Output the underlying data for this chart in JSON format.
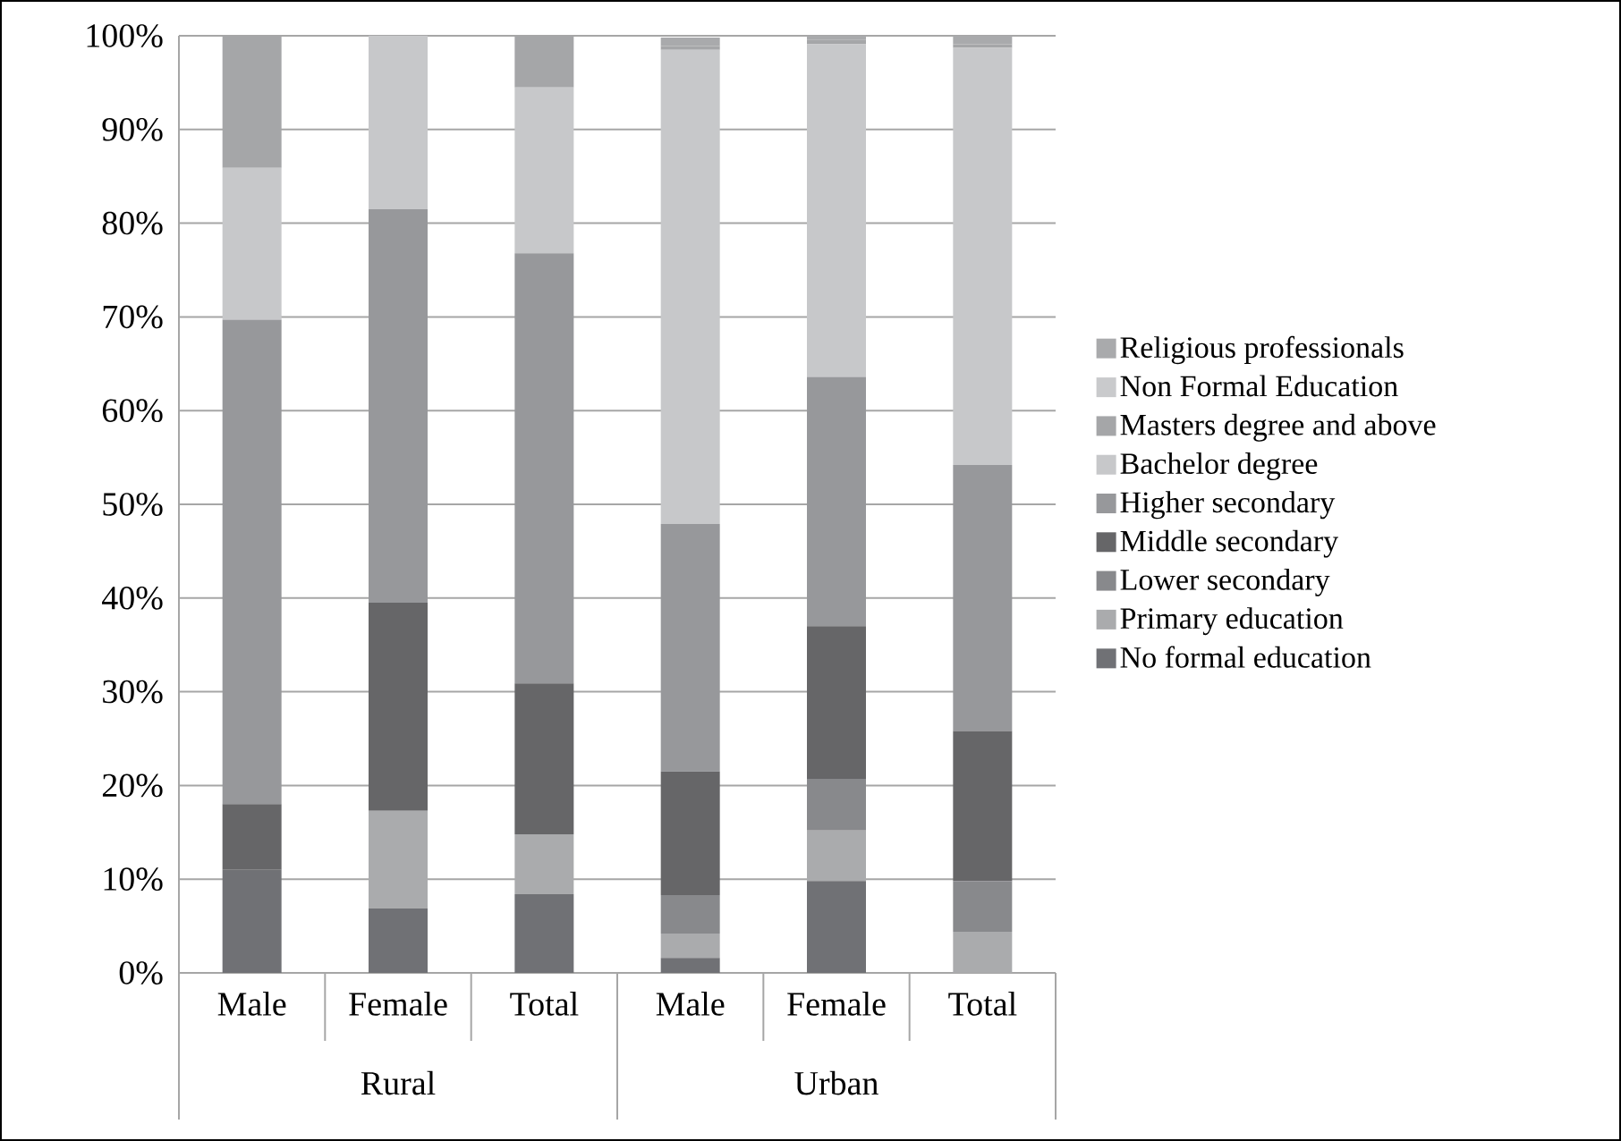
{
  "chart_data": {
    "type": "bar",
    "stacked": true,
    "categories": [
      "Male",
      "Female",
      "Total",
      "Male",
      "Female",
      "Total"
    ],
    "annotations": [
      "Rural",
      "Urban"
    ],
    "series": [
      {
        "name": "No formal education",
        "color": "#707175",
        "values": [
          11,
          6.9,
          8.4,
          1.6,
          9.8,
          0
        ]
      },
      {
        "name": "Primary education",
        "color": "#aaabad",
        "values": [
          0,
          10.4,
          6.4,
          2.6,
          5.4,
          4.4
        ]
      },
      {
        "name": "Lower  secondary",
        "color": "#88898c",
        "values": [
          0,
          0,
          0,
          4.1,
          5.5,
          5.4
        ]
      },
      {
        "name": "Middle secondary",
        "color": "#666668",
        "values": [
          7,
          22.2,
          16.1,
          13.2,
          16.3,
          16
        ]
      },
      {
        "name": "Higher secondary",
        "color": "#97989b",
        "values": [
          51.7,
          42,
          45.9,
          26.4,
          26.6,
          28.4
        ]
      },
      {
        "name": "Bachelor degree",
        "color": "#c7c8ca",
        "values": [
          16.2,
          18.5,
          17.7,
          50.6,
          35.5,
          44.5
        ]
      },
      {
        "name": "Masters degree and above",
        "color": "#a5a6a8",
        "values": [
          14.1,
          0,
          5.5,
          0.4,
          0.5,
          0.4
        ]
      },
      {
        "name": "Non Formal Education",
        "color": "#c9cacc",
        "values": [
          0,
          0,
          0,
          null,
          0,
          0
        ]
      },
      {
        "name": "Religious professionals",
        "color": "#a9aaac",
        "values": [
          0,
          0,
          0,
          0.9,
          0.4,
          0.9
        ]
      }
    ],
    "ylim": [
      0,
      100
    ],
    "yticks": [
      {
        "value": 0,
        "label": "0%"
      },
      {
        "value": 10,
        "label": "10%"
      },
      {
        "value": 20,
        "label": "20%"
      },
      {
        "value": 30,
        "label": "30%"
      },
      {
        "value": 40,
        "label": "40%"
      },
      {
        "value": 50,
        "label": "50%"
      },
      {
        "value": 60,
        "label": "60%"
      },
      {
        "value": 70,
        "label": "70%"
      },
      {
        "value": 80,
        "label": "80%"
      },
      {
        "value": 90,
        "label": "90%"
      },
      {
        "value": 100,
        "label": "100%"
      }
    ],
    "grid": "y",
    "legend": "right"
  }
}
